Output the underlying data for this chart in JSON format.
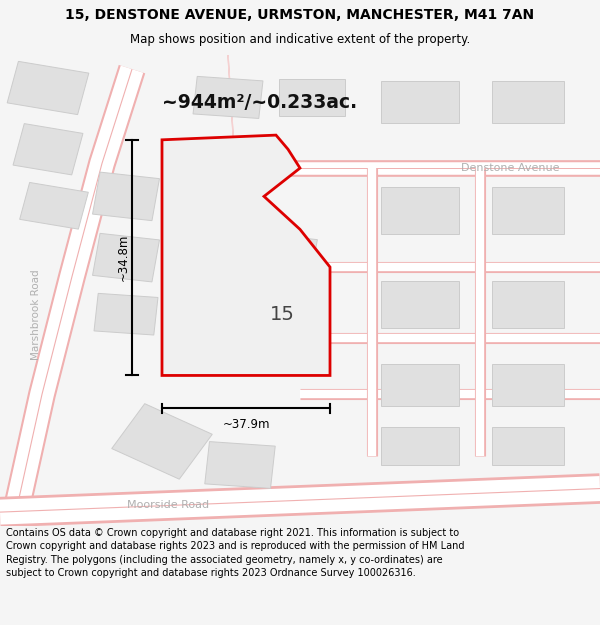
{
  "title_line1": "15, DENSTONE AVENUE, URMSTON, MANCHESTER, M41 7AN",
  "title_line2": "Map shows position and indicative extent of the property.",
  "area_label": "~944m²/~0.233ac.",
  "number_label": "15",
  "dim_horizontal": "~37.9m",
  "dim_vertical": "~34.8m",
  "road_label_bottom": "Moorside Road",
  "road_label_left": "Marshbrook Road",
  "road_label_right": "Denstone Avenue",
  "footer_text": "Contains OS data © Crown copyright and database right 2021. This information is subject to Crown copyright and database rights 2023 and is reproduced with the permission of HM Land Registry. The polygons (including the associated geometry, namely x, y co-ordinates) are subject to Crown copyright and database rights 2023 Ordnance Survey 100026316.",
  "bg_color": "#f5f5f5",
  "map_bg": "#ffffff",
  "plot_outline_color": "#dd0000",
  "plot_fill_color": "#f5f5f5",
  "road_fill_color": "#ffffff",
  "road_line_color": "#f0b0b0",
  "building_fill": "#e0e0e0",
  "building_edge": "#cccccc",
  "title_color": "#000000",
  "footer_color": "#000000",
  "road_text_color": "#b0b0b0",
  "dim_color": "#000000",
  "area_label_color": "#111111"
}
